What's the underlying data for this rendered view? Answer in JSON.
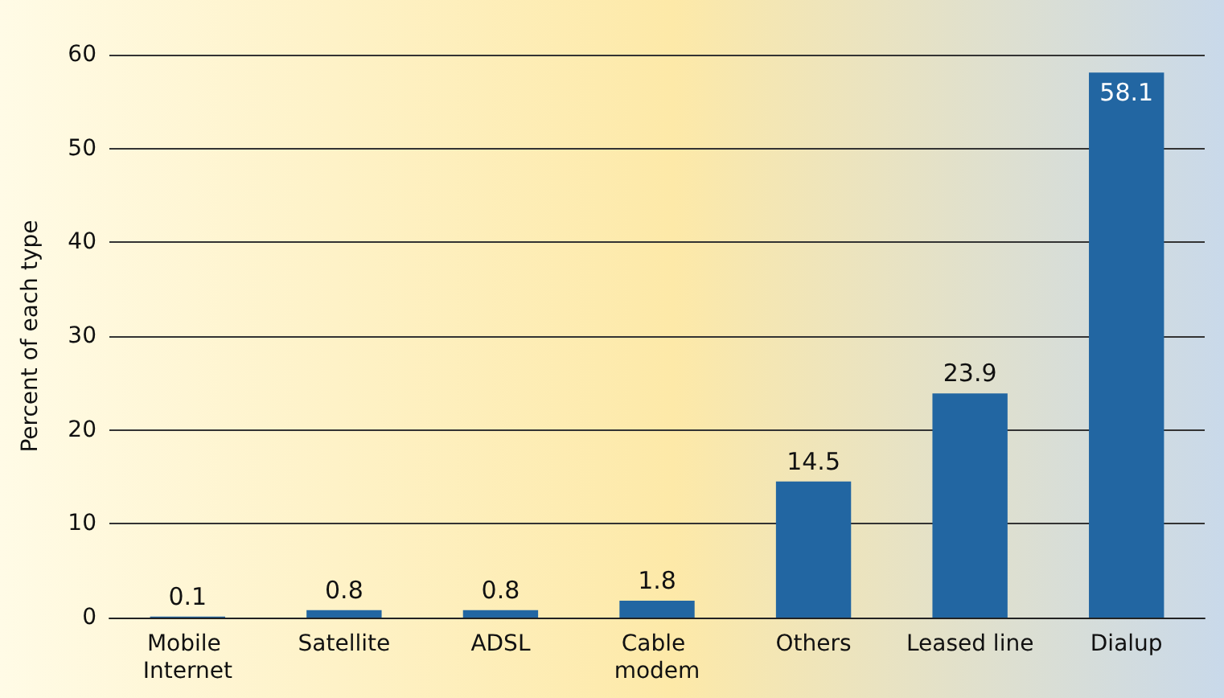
{
  "chart_data": {
    "type": "bar",
    "ylabel": "Percent of each type",
    "categories": [
      "Mobile Internet",
      "Satellite",
      "ADSL",
      "Cable modem",
      "Others",
      "Leased line",
      "Dialup"
    ],
    "values": [
      0.1,
      0.8,
      0.8,
      1.8,
      14.5,
      23.9,
      58.1
    ],
    "color": "#2266a2",
    "ylim": [
      0,
      60
    ],
    "yticks": [
      0,
      10,
      20,
      30,
      40,
      50,
      60
    ],
    "grid": "y",
    "data_labels": true
  }
}
